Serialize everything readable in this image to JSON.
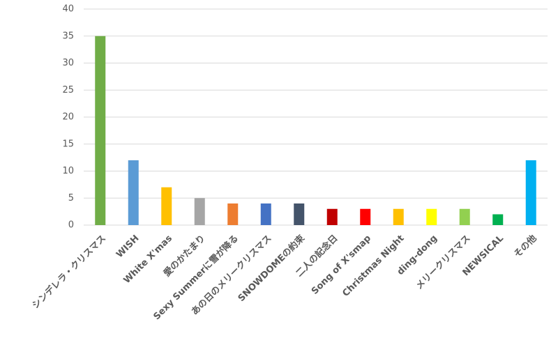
{
  "chart_data": {
    "type": "bar",
    "categories": [
      "シンデレラ・クリスマス",
      "WISH",
      "White X'mas",
      "愛のかたまり",
      "Sexy Summerに雪が降る",
      "あの日のメリークリスマス",
      "SNOWDOMEの約束",
      "二人の記念日",
      "Song of X'smap",
      "Christmas Night",
      "ding-dong",
      "メリークリスマス",
      "NEWSICAL",
      "その他"
    ],
    "values": [
      35,
      12,
      7,
      5,
      4,
      4,
      4,
      3,
      3,
      3,
      3,
      3,
      2,
      12
    ],
    "colors": [
      "#70ad47",
      "#5b9bd5",
      "#ffc000",
      "#a5a5a5",
      "#ed7d31",
      "#4472c4",
      "#44546a",
      "#c00000",
      "#ff0000",
      "#ffc000",
      "#ffff00",
      "#92d050",
      "#00b050",
      "#00b0f0"
    ],
    "ylim": [
      0,
      40
    ],
    "yticks": [
      0,
      5,
      10,
      15,
      20,
      25,
      30,
      35,
      40
    ],
    "grid": true
  }
}
